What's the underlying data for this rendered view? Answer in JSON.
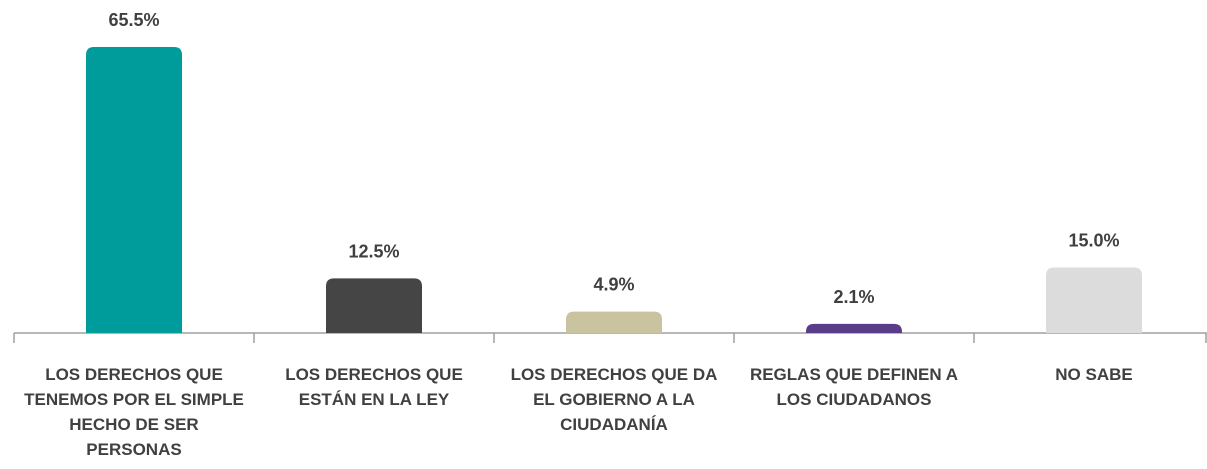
{
  "chart_data": {
    "type": "bar",
    "categories": [
      "LOS DERECHOS QUE TENEMOS POR EL SIMPLE HECHO DE SER PERSONAS",
      "LOS DERECHOS QUE ESTÁN EN LA LEY",
      "LOS DERECHOS QUE DA EL GOBIERNO A LA CIUDADANÍA",
      "REGLAS QUE DEFINEN A LOS CIUDADANOS",
      "NO SABE"
    ],
    "values": [
      65.5,
      12.5,
      4.9,
      2.1,
      15.0
    ],
    "value_labels": [
      "65.5%",
      "12.5%",
      "4.9%",
      "2.1%",
      "15.0%"
    ],
    "colors": [
      "#009b9b",
      "#454545",
      "#c9c3a0",
      "#5a3d88",
      "#dcdcdc"
    ]
  }
}
